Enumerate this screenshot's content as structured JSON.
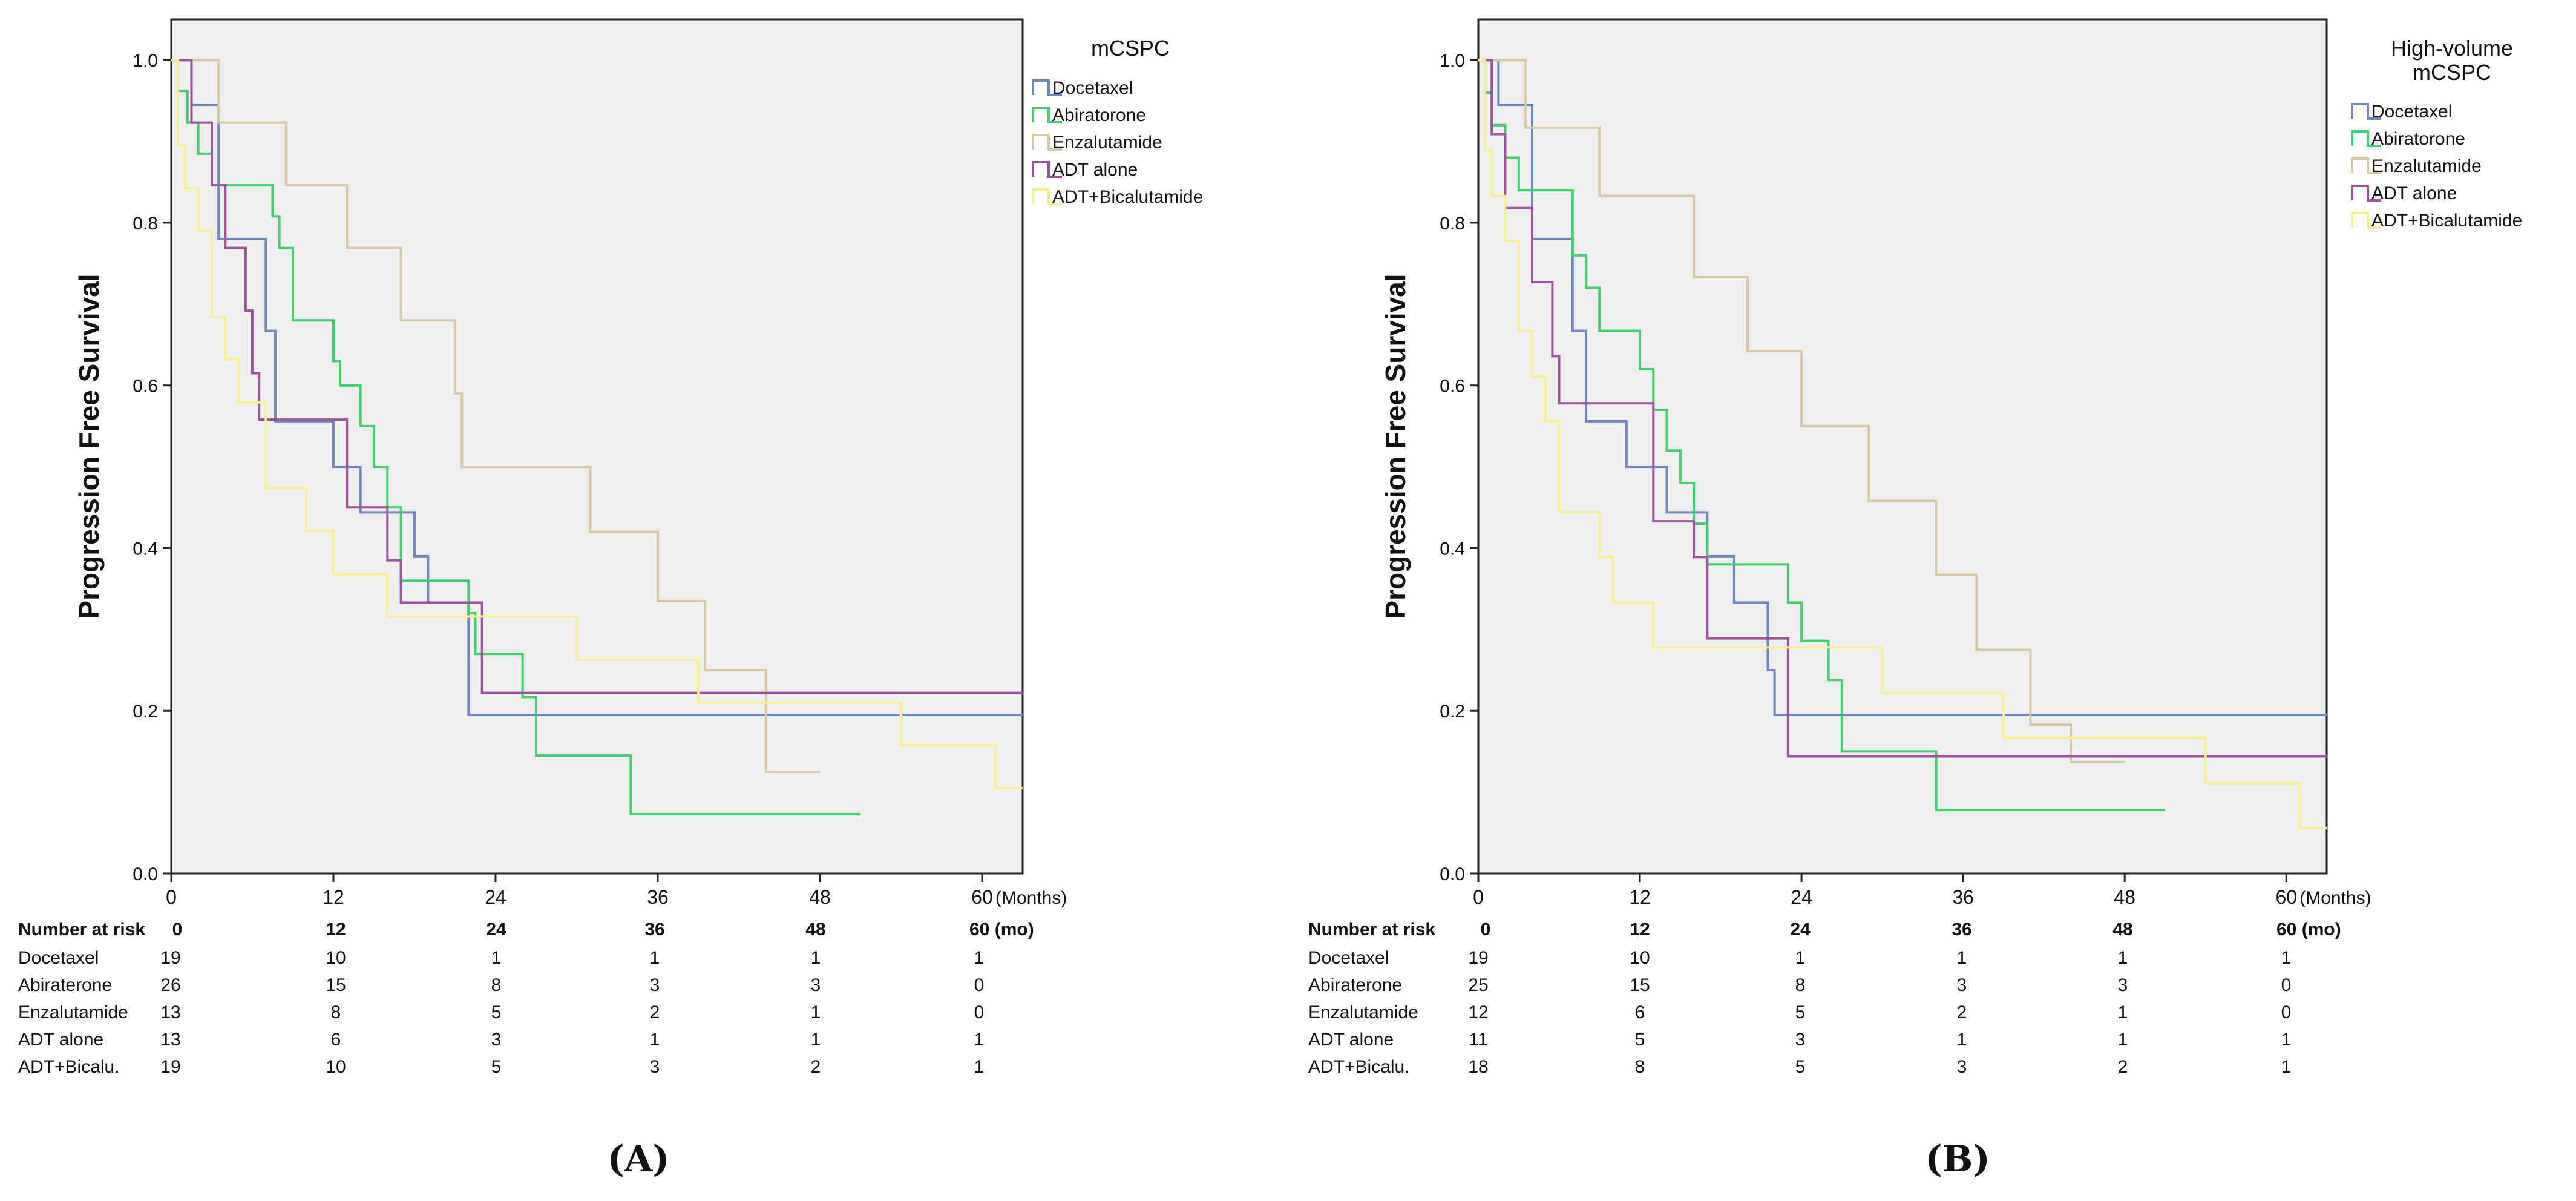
{
  "chart_data": [
    {
      "type": "line",
      "panel_label": "(A)",
      "legend_title": [
        "mCSPC"
      ],
      "ylabel": "Progression Free Survival",
      "xlabel_suffix": "(Months)",
      "xlim": [
        0,
        63
      ],
      "ylim": [
        0,
        1.05
      ],
      "x_ticks": [
        0,
        12,
        24,
        36,
        48,
        60
      ],
      "x_tick_labels": [
        "0",
        "12",
        "24",
        "36",
        "48",
        "60"
      ],
      "y_ticks": [
        0,
        0.2,
        0.4,
        0.6,
        0.8,
        1.0
      ],
      "y_tick_labels": [
        "0.0",
        "0.2",
        "0.4",
        "0.6",
        "0.8",
        "1.0"
      ],
      "series": [
        {
          "name": "Docetaxel",
          "color": "#6f86bf",
          "steps": [
            [
              0,
              1
            ],
            [
              1.5,
              0.945
            ],
            [
              3.5,
              0.78
            ],
            [
              7,
              0.667
            ],
            [
              7.7,
              0.556
            ],
            [
              12,
              0.5
            ],
            [
              14,
              0.444
            ],
            [
              18,
              0.39
            ],
            [
              19,
              0.333
            ],
            [
              22,
              0.195
            ],
            [
              63,
              0.195
            ]
          ]
        },
        {
          "name": "Abiratorone",
          "color": "#3fcf6b",
          "steps": [
            [
              0,
              1
            ],
            [
              0.5,
              0.962
            ],
            [
              1.2,
              0.923
            ],
            [
              2,
              0.885
            ],
            [
              3,
              0.846
            ],
            [
              7.5,
              0.808
            ],
            [
              8,
              0.769
            ],
            [
              9,
              0.68
            ],
            [
              12,
              0.63
            ],
            [
              12.5,
              0.6
            ],
            [
              14,
              0.55
            ],
            [
              15,
              0.5
            ],
            [
              16,
              0.45
            ],
            [
              17,
              0.36
            ],
            [
              22,
              0.32
            ],
            [
              22.5,
              0.27
            ],
            [
              26,
              0.217
            ],
            [
              27,
              0.145
            ],
            [
              34,
              0.073
            ],
            [
              51,
              0.073
            ]
          ]
        },
        {
          "name": "Enzalutamide",
          "color": "#d9c9a3",
          "steps": [
            [
              0,
              1
            ],
            [
              3.5,
              0.923
            ],
            [
              8.5,
              0.846
            ],
            [
              13,
              0.769
            ],
            [
              17,
              0.68
            ],
            [
              21,
              0.59
            ],
            [
              21.5,
              0.5
            ],
            [
              31,
              0.42
            ],
            [
              36,
              0.335
            ],
            [
              39.5,
              0.25
            ],
            [
              44,
              0.125
            ],
            [
              48,
              0.125
            ]
          ]
        },
        {
          "name": "ADT alone",
          "color": "#a0519e",
          "steps": [
            [
              0,
              1
            ],
            [
              1.5,
              0.923
            ],
            [
              3,
              0.846
            ],
            [
              4,
              0.769
            ],
            [
              5.5,
              0.692
            ],
            [
              6,
              0.615
            ],
            [
              6.5,
              0.558
            ],
            [
              13,
              0.45
            ],
            [
              15,
              0.45
            ],
            [
              16,
              0.385
            ],
            [
              17,
              0.333
            ],
            [
              22,
              0.333
            ],
            [
              23,
              0.222
            ],
            [
              63,
              0.222
            ]
          ]
        },
        {
          "name": "ADT+Bicalutamide",
          "color": "#f7ef8f",
          "steps": [
            [
              0,
              1
            ],
            [
              0.5,
              0.895
            ],
            [
              1,
              0.842
            ],
            [
              2,
              0.79
            ],
            [
              3,
              0.684
            ],
            [
              4,
              0.632
            ],
            [
              5,
              0.579
            ],
            [
              7,
              0.474
            ],
            [
              10,
              0.421
            ],
            [
              12,
              0.368
            ],
            [
              16,
              0.316
            ],
            [
              25,
              0.316
            ],
            [
              30,
              0.263
            ],
            [
              39,
              0.21
            ],
            [
              54,
              0.158
            ],
            [
              61,
              0.105
            ],
            [
              63,
              0.105
            ]
          ]
        }
      ],
      "risk_table": {
        "header": "Number at risk",
        "header_values": [
          "0",
          "12",
          "24",
          "36",
          "48",
          "60 (mo)"
        ],
        "rows": [
          {
            "label": "Docetaxel",
            "values": [
              "19",
              "10",
              "1",
              "1",
              "1",
              "1"
            ]
          },
          {
            "label": "Abiraterone",
            "values": [
              "26",
              "15",
              "8",
              "3",
              "3",
              "0"
            ]
          },
          {
            "label": "Enzalutamide",
            "values": [
              "13",
              "8",
              "5",
              "2",
              "1",
              "0"
            ]
          },
          {
            "label": "ADT alone",
            "values": [
              "13",
              "6",
              "3",
              "1",
              "1",
              "1"
            ]
          },
          {
            "label": "ADT+Bicalu.",
            "values": [
              "19",
              "10",
              "5",
              "3",
              "2",
              "1"
            ]
          }
        ]
      }
    },
    {
      "type": "line",
      "panel_label": "(B)",
      "legend_title": [
        "High-volume",
        "mCSPC"
      ],
      "ylabel": "Progression Free Survival",
      "xlabel_suffix": "(Months)",
      "xlim": [
        0,
        63
      ],
      "ylim": [
        0,
        1.05
      ],
      "x_ticks": [
        0,
        12,
        24,
        36,
        48,
        60
      ],
      "x_tick_labels": [
        "0",
        "12",
        "24",
        "36",
        "48",
        "60"
      ],
      "y_ticks": [
        0,
        0.2,
        0.4,
        0.6,
        0.8,
        1.0
      ],
      "y_tick_labels": [
        "0.0",
        "0.2",
        "0.4",
        "0.6",
        "0.8",
        "1.0"
      ],
      "series": [
        {
          "name": "Docetaxel",
          "color": "#6f86bf",
          "steps": [
            [
              0,
              1
            ],
            [
              1.5,
              0.945
            ],
            [
              4,
              0.78
            ],
            [
              7,
              0.667
            ],
            [
              8,
              0.556
            ],
            [
              11,
              0.5
            ],
            [
              14,
              0.444
            ],
            [
              17,
              0.39
            ],
            [
              19,
              0.333
            ],
            [
              21.5,
              0.25
            ],
            [
              22,
              0.195
            ],
            [
              63,
              0.195
            ]
          ]
        },
        {
          "name": "Abiratorone",
          "color": "#3fcf6b",
          "steps": [
            [
              0,
              1
            ],
            [
              0.5,
              0.96
            ],
            [
              1,
              0.92
            ],
            [
              2,
              0.88
            ],
            [
              3,
              0.84
            ],
            [
              7,
              0.76
            ],
            [
              8,
              0.72
            ],
            [
              9,
              0.667
            ],
            [
              12,
              0.62
            ],
            [
              13,
              0.57
            ],
            [
              14,
              0.52
            ],
            [
              15,
              0.48
            ],
            [
              16,
              0.43
            ],
            [
              17,
              0.38
            ],
            [
              23,
              0.333
            ],
            [
              24,
              0.286
            ],
            [
              26,
              0.238
            ],
            [
              27,
              0.15
            ],
            [
              34,
              0.078
            ],
            [
              51,
              0.078
            ]
          ]
        },
        {
          "name": "Enzalutamide",
          "color": "#d9c9a3",
          "steps": [
            [
              0,
              1
            ],
            [
              3.5,
              0.917
            ],
            [
              9,
              0.833
            ],
            [
              16,
              0.733
            ],
            [
              20,
              0.642
            ],
            [
              24,
              0.55
            ],
            [
              29,
              0.458
            ],
            [
              34,
              0.367
            ],
            [
              37,
              0.275
            ],
            [
              41,
              0.183
            ],
            [
              44,
              0.137
            ],
            [
              48,
              0.137
            ]
          ]
        },
        {
          "name": "ADT alone",
          "color": "#a0519e",
          "steps": [
            [
              0,
              1
            ],
            [
              1,
              0.909
            ],
            [
              2,
              0.818
            ],
            [
              4,
              0.727
            ],
            [
              5.5,
              0.636
            ],
            [
              6,
              0.578
            ],
            [
              13,
              0.433
            ],
            [
              16,
              0.389
            ],
            [
              17,
              0.289
            ],
            [
              22,
              0.289
            ],
            [
              23,
              0.144
            ],
            [
              63,
              0.144
            ]
          ]
        },
        {
          "name": "ADT+Bicalutamide",
          "color": "#f7ef8f",
          "steps": [
            [
              0,
              1
            ],
            [
              0.5,
              0.889
            ],
            [
              1,
              0.833
            ],
            [
              2,
              0.778
            ],
            [
              3,
              0.667
            ],
            [
              4,
              0.611
            ],
            [
              5,
              0.556
            ],
            [
              6,
              0.444
            ],
            [
              9,
              0.389
            ],
            [
              10,
              0.333
            ],
            [
              13,
              0.278
            ],
            [
              17,
              0.278
            ],
            [
              24,
              0.278
            ],
            [
              30,
              0.222
            ],
            [
              39,
              0.167
            ],
            [
              46,
              0.167
            ],
            [
              54,
              0.111
            ],
            [
              61,
              0.056
            ],
            [
              63,
              0.056
            ]
          ]
        }
      ],
      "risk_table": {
        "header": "Number at risk",
        "header_values": [
          "0",
          "12",
          "24",
          "36",
          "48",
          "60 (mo)"
        ],
        "rows": [
          {
            "label": "Docetaxel",
            "values": [
              "19",
              "10",
              "1",
              "1",
              "1",
              "1"
            ]
          },
          {
            "label": "Abiraterone",
            "values": [
              "25",
              "15",
              "8",
              "3",
              "3",
              "0"
            ]
          },
          {
            "label": "Enzalutamide",
            "values": [
              "12",
              "6",
              "5",
              "2",
              "1",
              "0"
            ]
          },
          {
            "label": "ADT alone",
            "values": [
              "11",
              "5",
              "3",
              "1",
              "1",
              "1"
            ]
          },
          {
            "label": "ADT+Bicalu.",
            "values": [
              "18",
              "8",
              "5",
              "3",
              "2",
              "1"
            ]
          }
        ]
      }
    }
  ]
}
